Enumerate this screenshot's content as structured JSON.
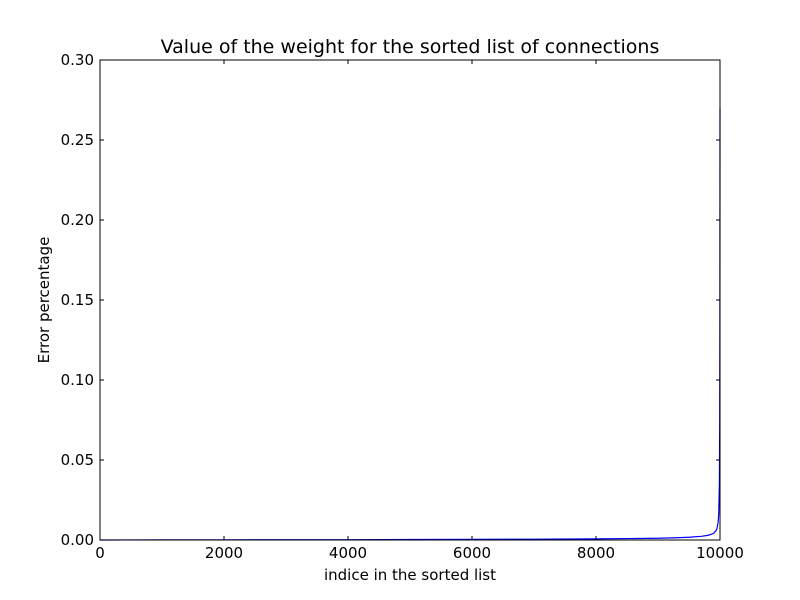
{
  "chart_data": {
    "type": "line",
    "title": "Value of the weight for the sorted list of connections",
    "xlabel": "indice in the sorted list",
    "ylabel": "Error percentage",
    "xlim": [
      0,
      10000
    ],
    "ylim": [
      0,
      0.3
    ],
    "xticks": [
      0,
      2000,
      4000,
      6000,
      8000,
      10000
    ],
    "xtick_labels": [
      "0",
      "2000",
      "4000",
      "6000",
      "8000",
      "10000"
    ],
    "yticks": [
      0,
      0.05,
      0.1,
      0.15,
      0.2,
      0.25,
      0.3
    ],
    "ytick_labels": [
      "0.00",
      "0.05",
      "0.10",
      "0.15",
      "0.20",
      "0.25",
      "0.30"
    ],
    "grid": false,
    "legend": "none",
    "series": [
      {
        "color": "#0000ff",
        "x": [
          0,
          1000,
          2000,
          3000,
          4000,
          5000,
          6000,
          7000,
          8000,
          8500,
          9000,
          9300,
          9500,
          9700,
          9800,
          9850,
          9900,
          9930,
          9950,
          9970,
          9980,
          9990,
          9995,
          9998,
          10000
        ],
        "y": [
          0.0,
          0.0001,
          0.0001,
          0.0002,
          0.0002,
          0.0003,
          0.0004,
          0.0005,
          0.0007,
          0.0009,
          0.0011,
          0.0014,
          0.0017,
          0.0023,
          0.0029,
          0.0034,
          0.0043,
          0.0055,
          0.007,
          0.011,
          0.017,
          0.035,
          0.07,
          0.14,
          0.27
        ]
      }
    ]
  }
}
